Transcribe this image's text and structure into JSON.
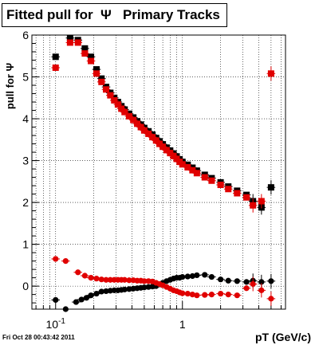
{
  "chart_data": {
    "type": "scatter",
    "title": "Fitted pull for  Ψ   Primary Tracks",
    "xlabel": "pT (GeV/c)",
    "ylabel": "pull for Ψ",
    "xscale": "log",
    "xlim": [
      0.065,
      6.5
    ],
    "ylim": [
      -0.55,
      6.0
    ],
    "grid": true,
    "x_ticks": [
      {
        "value": 0.1,
        "label": "10",
        "exponent": "-1"
      },
      {
        "value": 1,
        "label": "1",
        "exponent": ""
      }
    ],
    "y_ticks": [
      0,
      1,
      2,
      3,
      4,
      5,
      6
    ],
    "series": [
      {
        "color": "#000000",
        "kind": "upper",
        "points": [
          [
            0.1,
            5.48
          ],
          [
            0.13,
            5.93
          ],
          [
            0.15,
            5.88
          ],
          [
            0.17,
            5.68
          ],
          [
            0.19,
            5.48
          ],
          [
            0.21,
            5.18
          ],
          [
            0.23,
            4.96
          ],
          [
            0.25,
            4.76
          ],
          [
            0.27,
            4.62
          ],
          [
            0.29,
            4.5
          ],
          [
            0.31,
            4.4
          ],
          [
            0.33,
            4.3
          ],
          [
            0.35,
            4.22
          ],
          [
            0.38,
            4.12
          ],
          [
            0.41,
            4.03
          ],
          [
            0.44,
            3.94
          ],
          [
            0.47,
            3.86
          ],
          [
            0.5,
            3.78
          ],
          [
            0.54,
            3.7
          ],
          [
            0.58,
            3.62
          ],
          [
            0.62,
            3.54
          ],
          [
            0.66,
            3.46
          ],
          [
            0.7,
            3.39
          ],
          [
            0.75,
            3.31
          ],
          [
            0.8,
            3.24
          ],
          [
            0.85,
            3.17
          ],
          [
            0.9,
            3.1
          ],
          [
            0.95,
            3.03
          ],
          [
            1.0,
            2.97
          ],
          [
            1.1,
            2.9
          ],
          [
            1.2,
            2.83
          ],
          [
            1.3,
            2.76
          ],
          [
            1.5,
            2.66
          ],
          [
            1.7,
            2.58
          ],
          [
            2.0,
            2.48
          ],
          [
            2.3,
            2.38
          ],
          [
            2.7,
            2.28
          ],
          [
            3.2,
            2.18
          ],
          [
            3.6,
            2.03
          ],
          [
            4.2,
            1.88
          ],
          [
            5.0,
            2.36
          ]
        ]
      },
      {
        "color": "#e00000",
        "kind": "upper",
        "points": [
          [
            0.1,
            5.22
          ],
          [
            0.13,
            5.82
          ],
          [
            0.15,
            5.82
          ],
          [
            0.17,
            5.56
          ],
          [
            0.19,
            5.38
          ],
          [
            0.21,
            5.08
          ],
          [
            0.23,
            4.88
          ],
          [
            0.25,
            4.7
          ],
          [
            0.27,
            4.56
          ],
          [
            0.29,
            4.44
          ],
          [
            0.31,
            4.34
          ],
          [
            0.33,
            4.24
          ],
          [
            0.35,
            4.16
          ],
          [
            0.38,
            4.06
          ],
          [
            0.41,
            3.97
          ],
          [
            0.44,
            3.88
          ],
          [
            0.47,
            3.8
          ],
          [
            0.5,
            3.72
          ],
          [
            0.54,
            3.64
          ],
          [
            0.58,
            3.56
          ],
          [
            0.62,
            3.48
          ],
          [
            0.66,
            3.4
          ],
          [
            0.7,
            3.33
          ],
          [
            0.75,
            3.25
          ],
          [
            0.8,
            3.18
          ],
          [
            0.85,
            3.11
          ],
          [
            0.9,
            3.04
          ],
          [
            0.95,
            2.97
          ],
          [
            1.0,
            2.91
          ],
          [
            1.1,
            2.84
          ],
          [
            1.2,
            2.77
          ],
          [
            1.3,
            2.7
          ],
          [
            1.5,
            2.6
          ],
          [
            1.7,
            2.52
          ],
          [
            2.0,
            2.42
          ],
          [
            2.3,
            2.32
          ],
          [
            2.7,
            2.22
          ],
          [
            3.2,
            2.12
          ],
          [
            3.6,
            1.93
          ],
          [
            4.2,
            2.03
          ],
          [
            5.0,
            5.08
          ]
        ]
      },
      {
        "color": "#000000",
        "kind": "lower",
        "points": [
          [
            0.1,
            -0.33
          ],
          [
            0.12,
            -0.55
          ],
          [
            0.145,
            -0.38
          ],
          [
            0.16,
            -0.32
          ],
          [
            0.175,
            -0.28
          ],
          [
            0.19,
            -0.22
          ],
          [
            0.21,
            -0.18
          ],
          [
            0.23,
            -0.13
          ],
          [
            0.25,
            -0.12
          ],
          [
            0.27,
            -0.11
          ],
          [
            0.29,
            -0.1
          ],
          [
            0.31,
            -0.1
          ],
          [
            0.33,
            -0.09
          ],
          [
            0.35,
            -0.08
          ],
          [
            0.38,
            -0.07
          ],
          [
            0.41,
            -0.06
          ],
          [
            0.44,
            -0.05
          ],
          [
            0.47,
            -0.04
          ],
          [
            0.5,
            -0.03
          ],
          [
            0.54,
            -0.02
          ],
          [
            0.58,
            -0.01
          ],
          [
            0.62,
            0.0
          ],
          [
            0.66,
            0.04
          ],
          [
            0.7,
            0.08
          ],
          [
            0.75,
            0.12
          ],
          [
            0.8,
            0.15
          ],
          [
            0.85,
            0.18
          ],
          [
            0.9,
            0.2
          ],
          [
            0.95,
            0.2
          ],
          [
            1.0,
            0.22
          ],
          [
            1.1,
            0.23
          ],
          [
            1.2,
            0.24
          ],
          [
            1.3,
            0.26
          ],
          [
            1.5,
            0.27
          ],
          [
            1.7,
            0.22
          ],
          [
            2.0,
            0.16
          ],
          [
            2.3,
            0.13
          ],
          [
            2.7,
            0.12
          ],
          [
            3.2,
            0.1
          ],
          [
            3.6,
            0.13
          ],
          [
            4.2,
            0.1
          ],
          [
            5.0,
            0.12
          ]
        ]
      },
      {
        "color": "#e00000",
        "kind": "lower",
        "points": [
          [
            0.1,
            0.65
          ],
          [
            0.12,
            0.6
          ],
          [
            0.15,
            0.33
          ],
          [
            0.17,
            0.25
          ],
          [
            0.19,
            0.2
          ],
          [
            0.21,
            0.18
          ],
          [
            0.23,
            0.16
          ],
          [
            0.25,
            0.15
          ],
          [
            0.27,
            0.15
          ],
          [
            0.29,
            0.15
          ],
          [
            0.31,
            0.15
          ],
          [
            0.33,
            0.15
          ],
          [
            0.35,
            0.15
          ],
          [
            0.38,
            0.14
          ],
          [
            0.41,
            0.14
          ],
          [
            0.44,
            0.13
          ],
          [
            0.47,
            0.13
          ],
          [
            0.5,
            0.12
          ],
          [
            0.54,
            0.12
          ],
          [
            0.58,
            0.11
          ],
          [
            0.62,
            0.08
          ],
          [
            0.66,
            0.05
          ],
          [
            0.7,
            0.02
          ],
          [
            0.75,
            -0.02
          ],
          [
            0.8,
            -0.06
          ],
          [
            0.85,
            -0.1
          ],
          [
            0.9,
            -0.12
          ],
          [
            0.95,
            -0.15
          ],
          [
            1.0,
            -0.17
          ],
          [
            1.1,
            -0.18
          ],
          [
            1.2,
            -0.2
          ],
          [
            1.3,
            -0.22
          ],
          [
            1.5,
            -0.21
          ],
          [
            1.7,
            -0.2
          ],
          [
            2.0,
            -0.18
          ],
          [
            2.3,
            -0.2
          ],
          [
            2.7,
            -0.22
          ],
          [
            3.2,
            -0.05
          ],
          [
            3.6,
            0.05
          ],
          [
            4.2,
            -0.1
          ],
          [
            5.0,
            -0.3
          ]
        ]
      }
    ]
  },
  "footer": "Fri Oct 28 00:43:42 2011"
}
